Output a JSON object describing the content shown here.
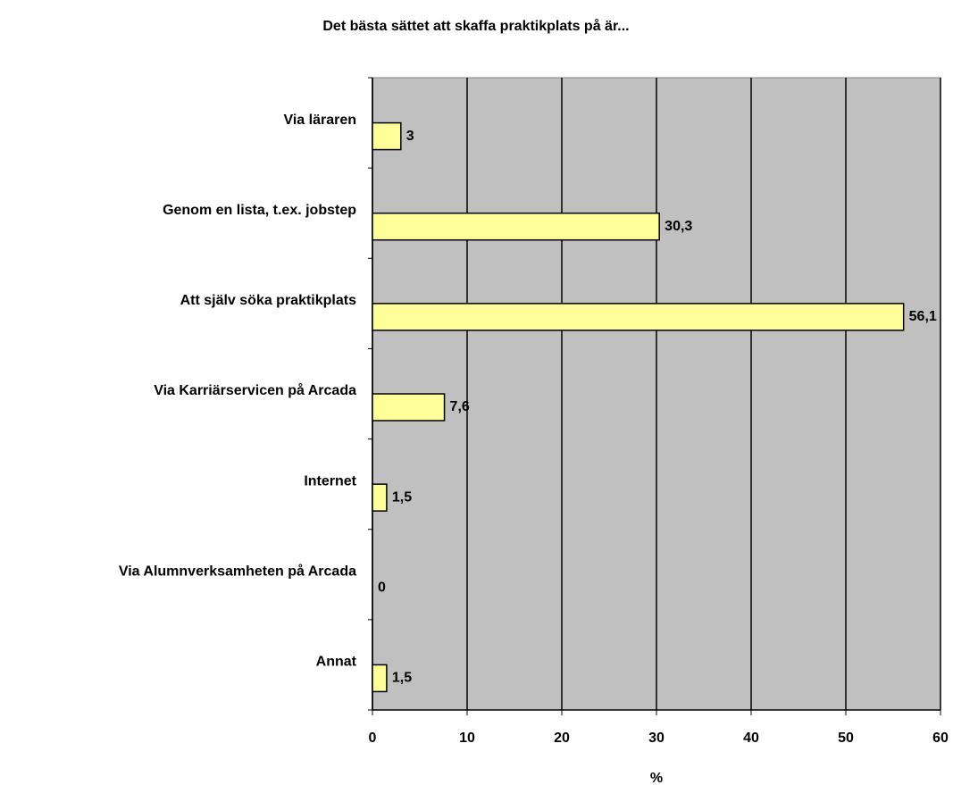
{
  "chart_data": {
    "type": "bar",
    "orientation": "horizontal",
    "title": "Det bästa sättet att skaffa praktikplats på är...",
    "xlabel": "%",
    "categories": [
      "Via läraren",
      "Genom en lista, t.ex. jobstep",
      "Att själv söka praktikplats",
      "Via Karriärservicen på Arcada",
      "Internet",
      "Via Alumnverksamheten på Arcada",
      "Annat"
    ],
    "values": [
      3,
      30.3,
      56.1,
      7.6,
      1.5,
      0,
      1.5
    ],
    "value_labels": [
      "3",
      "30,3",
      "56,1",
      "7,6",
      "1,5",
      "0",
      "1,5"
    ],
    "color": "#ffff99",
    "background": "#c0c0c0",
    "xlim": [
      0,
      60
    ],
    "xticks": [
      0,
      10,
      20,
      30,
      40,
      50,
      60
    ],
    "grid": true
  }
}
